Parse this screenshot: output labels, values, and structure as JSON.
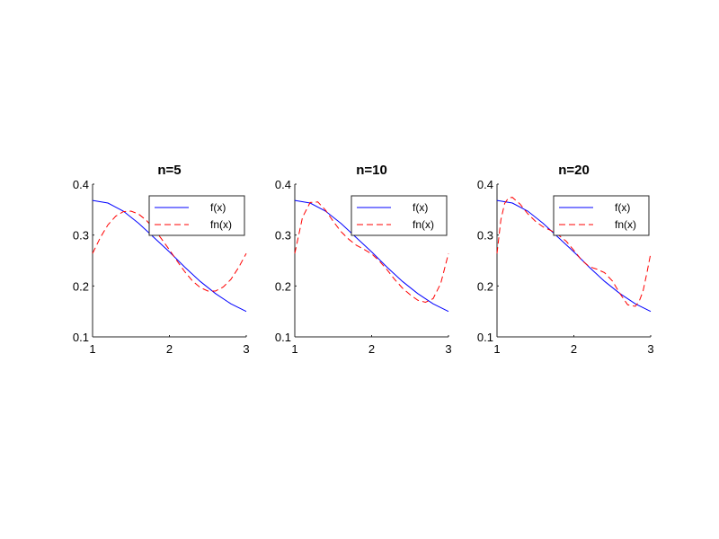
{
  "chart_data": [
    {
      "type": "line",
      "title": "n=5",
      "xlabel": "",
      "ylabel": "",
      "xlim": [
        1,
        3
      ],
      "ylim": [
        0.1,
        0.4
      ],
      "xticks": [
        1,
        2,
        3
      ],
      "xtick_labels": [
        "1",
        "2",
        "3"
      ],
      "yticks": [
        0.1,
        0.2,
        0.3,
        0.4
      ],
      "ytick_labels": [
        "0.1",
        "0.2",
        "0.3",
        "0.4"
      ],
      "grid": false,
      "legend_position": "top-right",
      "series": [
        {
          "name": "f(x)",
          "color": "#0000ff",
          "style": "solid",
          "x": [
            1,
            1.2,
            1.4,
            1.6,
            1.8,
            2.0,
            2.2,
            2.4,
            2.6,
            2.8,
            3.0
          ],
          "y": [
            0.368,
            0.363,
            0.347,
            0.323,
            0.295,
            0.267,
            0.237,
            0.209,
            0.185,
            0.165,
            0.15
          ]
        },
        {
          "name": "fn(x)",
          "color": "#ff0000",
          "style": "dashed",
          "x": [
            1,
            1.1,
            1.2,
            1.3,
            1.4,
            1.5,
            1.6,
            1.7,
            1.8,
            1.9,
            2.0,
            2.1,
            2.2,
            2.3,
            2.4,
            2.5,
            2.6,
            2.7,
            2.8,
            2.9,
            3.0
          ],
          "y": [
            0.264,
            0.295,
            0.32,
            0.337,
            0.346,
            0.347,
            0.341,
            0.329,
            0.312,
            0.292,
            0.271,
            0.249,
            0.228,
            0.21,
            0.197,
            0.19,
            0.19,
            0.198,
            0.213,
            0.236,
            0.264
          ]
        }
      ]
    },
    {
      "type": "line",
      "title": "n=10",
      "xlabel": "",
      "ylabel": "",
      "xlim": [
        1,
        3
      ],
      "ylim": [
        0.1,
        0.4
      ],
      "xticks": [
        1,
        2,
        3
      ],
      "xtick_labels": [
        "1",
        "2",
        "3"
      ],
      "yticks": [
        0.1,
        0.2,
        0.3,
        0.4
      ],
      "ytick_labels": [
        "0.1",
        "0.2",
        "0.3",
        "0.4"
      ],
      "grid": false,
      "legend_position": "top-right",
      "series": [
        {
          "name": "f(x)",
          "color": "#0000ff",
          "style": "solid",
          "x": [
            1,
            1.2,
            1.4,
            1.6,
            1.8,
            2.0,
            2.2,
            2.4,
            2.6,
            2.8,
            3.0
          ],
          "y": [
            0.368,
            0.363,
            0.347,
            0.323,
            0.295,
            0.267,
            0.237,
            0.209,
            0.185,
            0.165,
            0.15
          ]
        },
        {
          "name": "fn(x)",
          "color": "#ff0000",
          "style": "dashed",
          "x": [
            1,
            1.1,
            1.2,
            1.3,
            1.4,
            1.5,
            1.6,
            1.7,
            1.8,
            1.9,
            2.0,
            2.1,
            2.2,
            2.3,
            2.4,
            2.5,
            2.6,
            2.7,
            2.8,
            2.9,
            3.0
          ],
          "y": [
            0.264,
            0.335,
            0.364,
            0.365,
            0.349,
            0.327,
            0.307,
            0.292,
            0.28,
            0.272,
            0.263,
            0.249,
            0.232,
            0.213,
            0.196,
            0.183,
            0.172,
            0.168,
            0.175,
            0.205,
            0.264
          ]
        }
      ]
    },
    {
      "type": "line",
      "title": "n=20",
      "xlabel": "",
      "ylabel": "",
      "xlim": [
        1,
        3
      ],
      "ylim": [
        0.1,
        0.4
      ],
      "xticks": [
        1,
        2,
        3
      ],
      "xtick_labels": [
        "1",
        "2",
        "3"
      ],
      "yticks": [
        0.1,
        0.2,
        0.3,
        0.4
      ],
      "ytick_labels": [
        "0.1",
        "0.2",
        "0.3",
        "0.4"
      ],
      "grid": false,
      "legend_position": "top-right",
      "series": [
        {
          "name": "f(x)",
          "color": "#0000ff",
          "style": "solid",
          "x": [
            1,
            1.2,
            1.4,
            1.6,
            1.8,
            2.0,
            2.2,
            2.4,
            2.6,
            2.8,
            3.0
          ],
          "y": [
            0.368,
            0.363,
            0.347,
            0.323,
            0.295,
            0.267,
            0.237,
            0.209,
            0.185,
            0.165,
            0.15
          ]
        },
        {
          "name": "fn(x)",
          "color": "#ff0000",
          "style": "dashed",
          "x": [
            1,
            1.05,
            1.1,
            1.15,
            1.2,
            1.3,
            1.4,
            1.5,
            1.6,
            1.7,
            1.8,
            1.9,
            2.0,
            2.1,
            2.2,
            2.3,
            2.4,
            2.5,
            2.6,
            2.7,
            2.8,
            2.85,
            2.9,
            2.95,
            3.0
          ],
          "y": [
            0.264,
            0.33,
            0.362,
            0.373,
            0.374,
            0.361,
            0.342,
            0.327,
            0.316,
            0.309,
            0.3,
            0.288,
            0.27,
            0.251,
            0.238,
            0.233,
            0.226,
            0.21,
            0.185,
            0.163,
            0.16,
            0.17,
            0.19,
            0.225,
            0.264
          ]
        }
      ]
    }
  ]
}
